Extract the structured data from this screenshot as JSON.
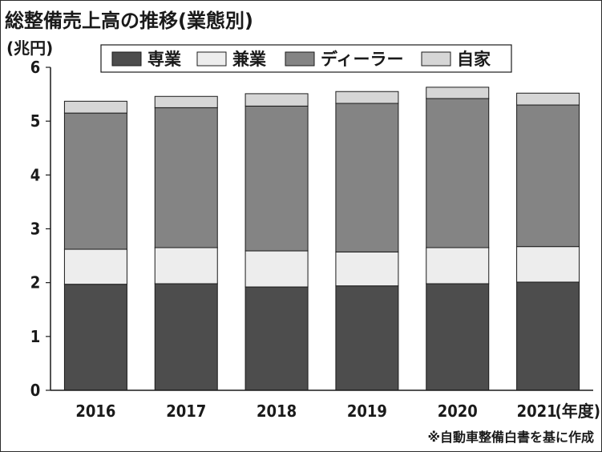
{
  "title": "総整備売上高の推移(業態別)",
  "unit_label": "(兆円)",
  "source_note": "※自動車整備白書を基に作成",
  "colors": {
    "専業": "#4d4d4d",
    "兼業": "#ededed",
    "ディーラー": "#848484",
    "自家": "#d6d6d6"
  },
  "chart_data": {
    "type": "bar",
    "stacked": true,
    "categories": [
      "2016",
      "2017",
      "2018",
      "2019",
      "2020",
      "2021"
    ],
    "x_suffix": "(年度)",
    "series": [
      {
        "name": "専業",
        "values": [
          1.97,
          1.98,
          1.92,
          1.94,
          1.98,
          2.01
        ]
      },
      {
        "name": "兼業",
        "values": [
          0.65,
          0.67,
          0.67,
          0.63,
          0.67,
          0.66
        ]
      },
      {
        "name": "ディーラー",
        "values": [
          2.53,
          2.6,
          2.69,
          2.76,
          2.77,
          2.63
        ]
      },
      {
        "name": "自家",
        "values": [
          0.22,
          0.21,
          0.23,
          0.22,
          0.21,
          0.22
        ]
      }
    ],
    "ylim": [
      0,
      6
    ],
    "yticks": [
      "0",
      "1",
      "2",
      "3",
      "4",
      "5",
      "6"
    ],
    "legend_position": "top",
    "grid": false
  }
}
